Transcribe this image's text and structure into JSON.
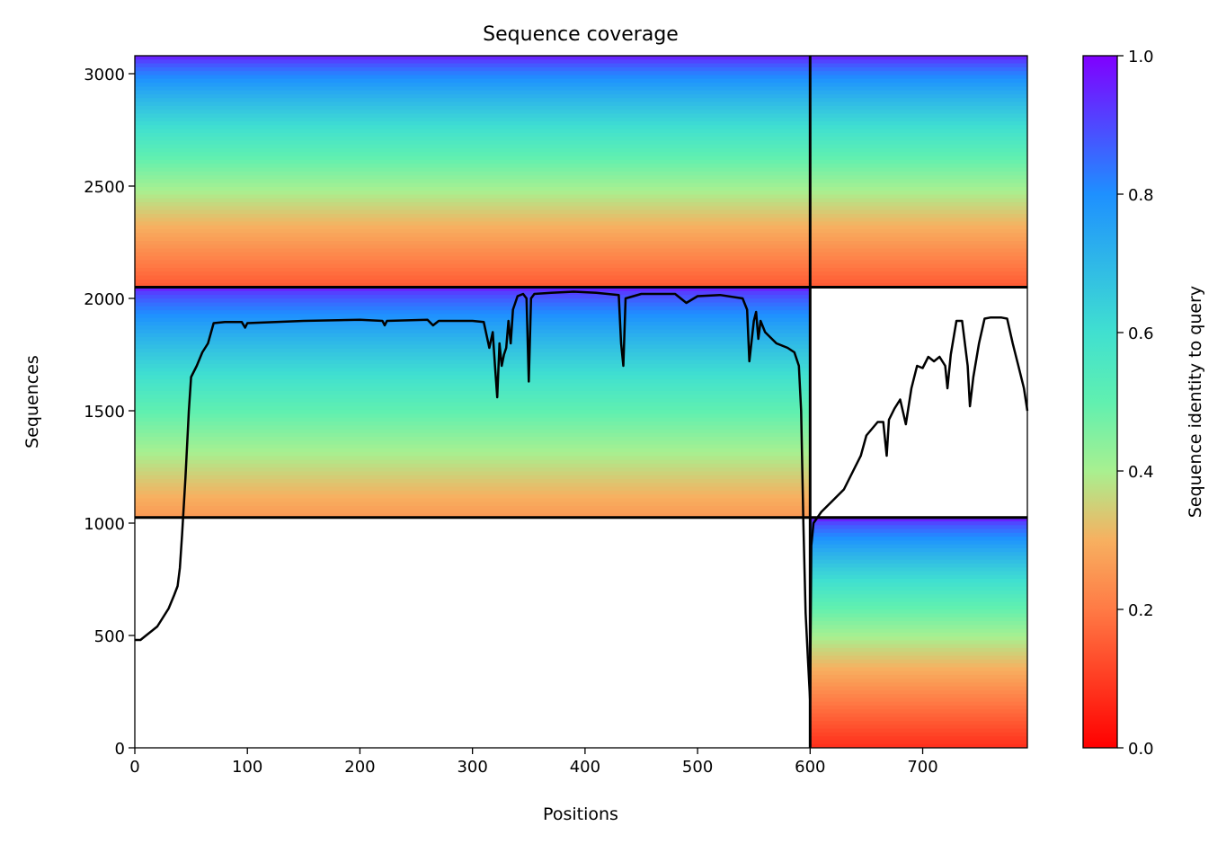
{
  "chart_data": {
    "type": "heatmap",
    "title": "Sequence coverage",
    "xlabel": "Positions",
    "ylabel": "Sequences",
    "xlim": [
      0,
      793
    ],
    "ylim": [
      0,
      3080
    ],
    "x_ticks": [
      0,
      100,
      200,
      300,
      400,
      500,
      600,
      700
    ],
    "y_ticks": [
      0,
      500,
      1000,
      1500,
      2000,
      2500,
      3000
    ],
    "grid": false,
    "colorbar": {
      "label": "Sequence identity to query",
      "colormap": "rainbow_r",
      "range": [
        0,
        1
      ],
      "ticks": [
        "0.0",
        "0.2",
        "0.4",
        "0.6",
        "0.8",
        "1.0"
      ]
    },
    "blocks": [
      {
        "name": "paired-top-left",
        "x": [
          0,
          599
        ],
        "y": [
          2050,
          3080
        ],
        "identity_top": 0.95,
        "identity_bottom": 0.15
      },
      {
        "name": "paired-top-right",
        "x": [
          601,
          793
        ],
        "y": [
          2050,
          3080
        ],
        "identity_top": 0.95,
        "identity_bottom": 0.15
      },
      {
        "name": "chain-a",
        "x": [
          0,
          599
        ],
        "y": [
          1025,
          2050
        ],
        "identity_top": 0.95,
        "identity_bottom": 0.26
      },
      {
        "name": "chain-b",
        "x": [
          601,
          793
        ],
        "y": [
          0,
          1025
        ],
        "identity_top": 0.95,
        "identity_bottom": 0.08
      }
    ],
    "separators": {
      "x": [
        600
      ],
      "y": [
        1025,
        2050
      ]
    },
    "series": [
      {
        "type": "line",
        "color": "#000000",
        "points": [
          [
            0,
            480
          ],
          [
            5,
            480
          ],
          [
            10,
            500
          ],
          [
            15,
            520
          ],
          [
            20,
            540
          ],
          [
            25,
            580
          ],
          [
            30,
            620
          ],
          [
            35,
            680
          ],
          [
            38,
            720
          ],
          [
            40,
            800
          ],
          [
            42,
            950
          ],
          [
            45,
            1200
          ],
          [
            48,
            1500
          ],
          [
            50,
            1650
          ],
          [
            55,
            1700
          ],
          [
            60,
            1760
          ],
          [
            65,
            1800
          ],
          [
            70,
            1890
          ],
          [
            80,
            1895
          ],
          [
            95,
            1895
          ],
          [
            98,
            1870
          ],
          [
            100,
            1890
          ],
          [
            150,
            1900
          ],
          [
            200,
            1905
          ],
          [
            220,
            1900
          ],
          [
            222,
            1880
          ],
          [
            224,
            1900
          ],
          [
            260,
            1905
          ],
          [
            265,
            1880
          ],
          [
            270,
            1900
          ],
          [
            300,
            1900
          ],
          [
            310,
            1895
          ],
          [
            315,
            1780
          ],
          [
            318,
            1850
          ],
          [
            320,
            1700
          ],
          [
            322,
            1560
          ],
          [
            324,
            1800
          ],
          [
            326,
            1700
          ],
          [
            328,
            1750
          ],
          [
            330,
            1780
          ],
          [
            332,
            1900
          ],
          [
            334,
            1800
          ],
          [
            336,
            1950
          ],
          [
            340,
            2010
          ],
          [
            345,
            2020
          ],
          [
            348,
            2000
          ],
          [
            350,
            1630
          ],
          [
            352,
            2000
          ],
          [
            355,
            2020
          ],
          [
            370,
            2025
          ],
          [
            390,
            2030
          ],
          [
            410,
            2025
          ],
          [
            430,
            2015
          ],
          [
            432,
            1800
          ],
          [
            434,
            1700
          ],
          [
            436,
            2000
          ],
          [
            450,
            2020
          ],
          [
            480,
            2020
          ],
          [
            490,
            1980
          ],
          [
            500,
            2010
          ],
          [
            520,
            2015
          ],
          [
            540,
            2000
          ],
          [
            544,
            1950
          ],
          [
            546,
            1720
          ],
          [
            550,
            1900
          ],
          [
            552,
            1940
          ],
          [
            554,
            1820
          ],
          [
            556,
            1900
          ],
          [
            560,
            1850
          ],
          [
            570,
            1800
          ],
          [
            580,
            1780
          ],
          [
            586,
            1760
          ],
          [
            590,
            1700
          ],
          [
            592,
            1500
          ],
          [
            594,
            1000
          ],
          [
            596,
            600
          ],
          [
            598,
            400
          ],
          [
            600,
            210
          ],
          [
            601,
            900
          ],
          [
            603,
            1000
          ],
          [
            610,
            1050
          ],
          [
            620,
            1100
          ],
          [
            630,
            1150
          ],
          [
            640,
            1250
          ],
          [
            645,
            1300
          ],
          [
            650,
            1390
          ],
          [
            660,
            1450
          ],
          [
            665,
            1450
          ],
          [
            668,
            1300
          ],
          [
            670,
            1460
          ],
          [
            675,
            1510
          ],
          [
            680,
            1550
          ],
          [
            685,
            1440
          ],
          [
            690,
            1600
          ],
          [
            695,
            1700
          ],
          [
            700,
            1690
          ],
          [
            705,
            1740
          ],
          [
            710,
            1720
          ],
          [
            715,
            1740
          ],
          [
            720,
            1700
          ],
          [
            722,
            1600
          ],
          [
            725,
            1750
          ],
          [
            730,
            1900
          ],
          [
            735,
            1900
          ],
          [
            740,
            1700
          ],
          [
            742,
            1520
          ],
          [
            745,
            1650
          ],
          [
            750,
            1800
          ],
          [
            755,
            1910
          ],
          [
            760,
            1915
          ],
          [
            770,
            1915
          ],
          [
            775,
            1910
          ],
          [
            780,
            1800
          ],
          [
            785,
            1700
          ],
          [
            790,
            1600
          ],
          [
            793,
            1500
          ]
        ]
      }
    ]
  }
}
